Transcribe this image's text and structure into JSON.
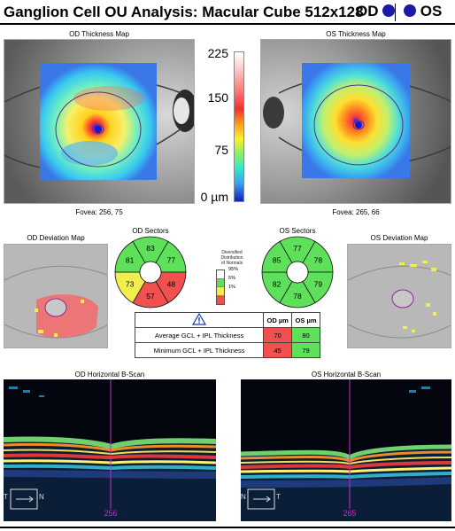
{
  "header": {
    "title": "Ganglion Cell OU Analysis: Macular Cube 512x128",
    "od": "OD",
    "os": "OS"
  },
  "od_map": {
    "title": "OD Thickness Map",
    "fovea": "Fovea: 256, 75"
  },
  "os_map": {
    "title": "OS Thickness Map",
    "fovea": "Fovea: 265, 66"
  },
  "scale": {
    "labels": [
      "225",
      "150",
      "75",
      "0 µm"
    ]
  },
  "od_dev": {
    "title": "OD Deviation Map"
  },
  "os_dev": {
    "title": "OS Deviation Map"
  },
  "od_sectors": {
    "title": "OD Sectors",
    "values": [
      "83",
      "77",
      "48",
      "57",
      "73",
      "81"
    ],
    "colors": [
      "#5ee05a",
      "#5ee05a",
      "#f0504e",
      "#f0504e",
      "#f2ee50",
      "#5ee05a"
    ]
  },
  "os_sectors": {
    "title": "OS Sectors",
    "values": [
      "77",
      "78",
      "79",
      "78",
      "82",
      "85"
    ],
    "colors": [
      "#5ee05a",
      "#5ee05a",
      "#5ee05a",
      "#5ee05a",
      "#5ee05a",
      "#5ee05a"
    ]
  },
  "legend": {
    "title": [
      "Diversified",
      "Distribution",
      "of Normals"
    ],
    "pcts": [
      "95%",
      "5%",
      "1%"
    ],
    "colors": [
      "#ffffff",
      "#5ee05a",
      "#f2ee50",
      "#f0504e"
    ]
  },
  "table": {
    "h_od": "OD µm",
    "h_os": "OS µm",
    "rows": [
      {
        "label": "Average GCL + IPL Thickness",
        "od": "70",
        "os": "80",
        "od_color": "#f0504e",
        "os_color": "#5ee05a"
      },
      {
        "label": "Minimum GCL + IPL Thickness",
        "od": "45",
        "os": "79",
        "od_color": "#f0504e",
        "os_color": "#5ee05a"
      }
    ]
  },
  "od_bscan": {
    "title": "OD Horizontal B-Scan",
    "pos": "256",
    "t": "T",
    "n": "N"
  },
  "os_bscan": {
    "title": "OS Horizontal B-Scan",
    "pos": "265",
    "n": "N",
    "t": "T"
  }
}
